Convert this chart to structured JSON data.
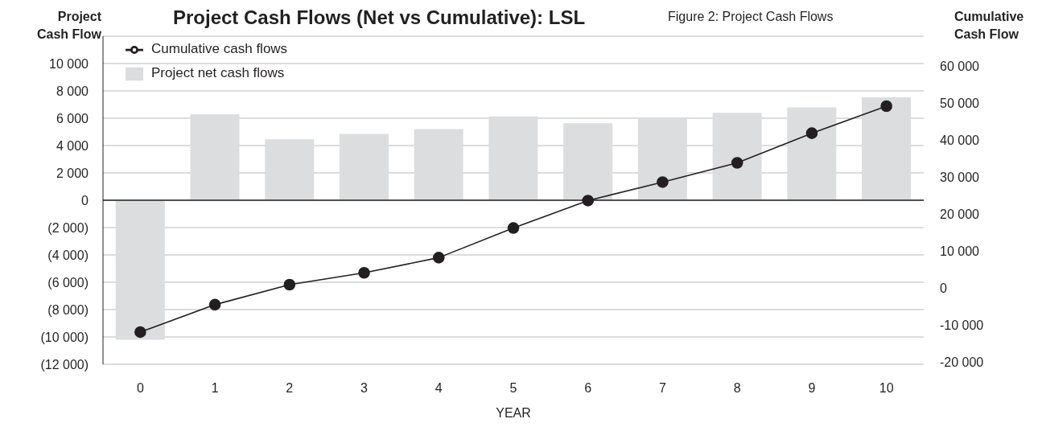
{
  "chart_data": {
    "type": "bar",
    "title": "Project Cash Flows (Net vs Cumulative): LSL",
    "annotations": [
      "Figure 2: Project Cash Flows"
    ],
    "xlabel": "YEAR",
    "ylabel": "Project Cash Flow",
    "y2label": "Cumulative Cash Flow",
    "categories": [
      "0",
      "1",
      "2",
      "3",
      "4",
      "5",
      "6",
      "7",
      "8",
      "9",
      "10"
    ],
    "series": [
      {
        "name": "Project net cash flows",
        "type": "bar",
        "color": "#dcdddf",
        "values": [
          -10200,
          6280,
          4450,
          4850,
          5200,
          6130,
          5630,
          5980,
          6390,
          6800,
          7530
        ]
      },
      {
        "name": "Cumulative cash flows",
        "type": "line",
        "axis": "y2",
        "color": "#231f20",
        "values": [
          -11900,
          -4500,
          900,
          4100,
          8200,
          16200,
          23600,
          28600,
          33800,
          41800,
          49100
        ]
      }
    ],
    "ylim": [
      -12000,
      12000
    ],
    "yticks": [
      {
        "value": -12000,
        "label": "(12 000)"
      },
      {
        "value": -10000,
        "label": "(10 000)"
      },
      {
        "value": -8000,
        "label": "(8 000)"
      },
      {
        "value": -6000,
        "label": "(6 000)"
      },
      {
        "value": -4000,
        "label": "(4 000)"
      },
      {
        "value": -2000,
        "label": "(2 000)"
      },
      {
        "value": 0,
        "label": "0"
      },
      {
        "value": 2000,
        "label": "2 000"
      },
      {
        "value": 4000,
        "label": "4 000"
      },
      {
        "value": 6000,
        "label": "6 000"
      },
      {
        "value": 8000,
        "label": "8 000"
      },
      {
        "value": 10000,
        "label": "10 000"
      }
    ],
    "y2lim": [
      -20600,
      68000
    ],
    "y2ticks": [
      {
        "value": -20000,
        "label": "-20 000"
      },
      {
        "value": -10000,
        "label": "-10 000"
      },
      {
        "value": 0,
        "label": "0"
      },
      {
        "value": 10000,
        "label": "10 000"
      },
      {
        "value": 20000,
        "label": "20 000"
      },
      {
        "value": 30000,
        "label": "30 000"
      },
      {
        "value": 40000,
        "label": "40 000"
      },
      {
        "value": 50000,
        "label": "50 000"
      },
      {
        "value": 60000,
        "label": "60 000"
      }
    ],
    "ref_lines": [
      {
        "axis": "y",
        "value": 0,
        "color": "#231f20"
      }
    ],
    "grid": "y",
    "legend": "top left",
    "marker": "circle",
    "line_style": "solid"
  }
}
